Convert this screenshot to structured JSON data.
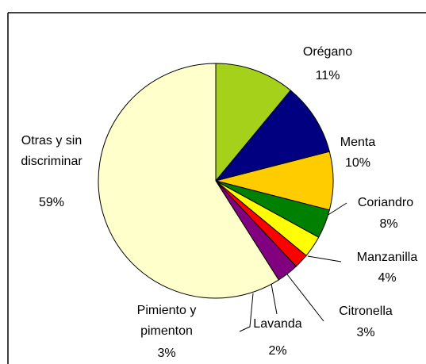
{
  "chart_data": {
    "type": "pie",
    "categories": [
      "Orégano",
      "Menta",
      "Coriandro",
      "Manzanilla",
      "Citronella",
      "Lavanda",
      "Pimiento y pimenton",
      "Otras y sin discriminar"
    ],
    "values": [
      11,
      10,
      8,
      4,
      3,
      2,
      3,
      59
    ],
    "value_labels": [
      "11%",
      "10%",
      "8%",
      "4%",
      "3%",
      "2%",
      "3%",
      "59%"
    ],
    "colors": [
      "#a6d11a",
      "#000080",
      "#ffcc00",
      "#008000",
      "#ffff00",
      "#ff0000",
      "#800080",
      "#ffffcc"
    ]
  }
}
